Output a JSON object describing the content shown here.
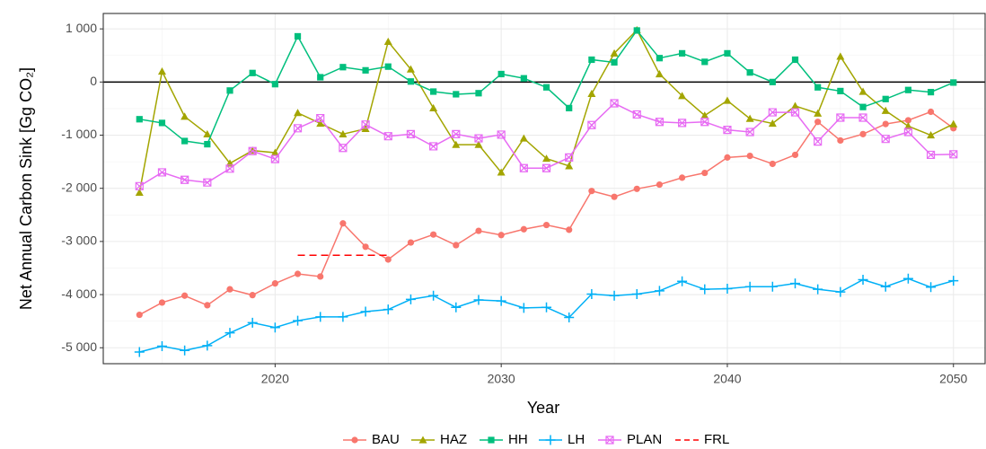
{
  "chart_data": {
    "type": "line",
    "x_label": "Year",
    "y_label": "Net Annual Carbon Sink [Gg CO₂]",
    "x": [
      2014,
      2015,
      2016,
      2017,
      2018,
      2019,
      2020,
      2021,
      2022,
      2023,
      2024,
      2025,
      2026,
      2027,
      2028,
      2029,
      2030,
      2031,
      2032,
      2033,
      2034,
      2035,
      2036,
      2037,
      2038,
      2039,
      2040,
      2041,
      2042,
      2043,
      2044,
      2045,
      2046,
      2047,
      2048,
      2049,
      2050
    ],
    "series": [
      {
        "name": "BAU",
        "color": "#F8766D",
        "marker": "circle",
        "values": [
          -4380,
          -4150,
          -4020,
          -4200,
          -3900,
          -4010,
          -3790,
          -3610,
          -3660,
          -2660,
          -3100,
          -3340,
          -3020,
          -2870,
          -3070,
          -2800,
          -2880,
          -2770,
          -2690,
          -2780,
          -2050,
          -2160,
          -2010,
          -1930,
          -1800,
          -1710,
          -1420,
          -1390,
          -1540,
          -1370,
          -750,
          -1100,
          -980,
          -790,
          -720,
          -560,
          -870
        ]
      },
      {
        "name": "HAZ",
        "color": "#A3A500",
        "marker": "triangle",
        "values": [
          -2080,
          200,
          -650,
          -980,
          -1530,
          -1290,
          -1330,
          -580,
          -780,
          -980,
          -880,
          760,
          240,
          -490,
          -1180,
          -1180,
          -1700,
          -1060,
          -1440,
          -1580,
          -220,
          540,
          980,
          150,
          -260,
          -630,
          -350,
          -690,
          -780,
          -450,
          -590,
          480,
          -180,
          -540,
          -830,
          -1000,
          -790
        ]
      },
      {
        "name": "HH",
        "color": "#00BF7D",
        "marker": "square",
        "values": [
          -700,
          -770,
          -1110,
          -1170,
          -160,
          170,
          -40,
          860,
          90,
          280,
          220,
          290,
          10,
          -180,
          -230,
          -210,
          150,
          70,
          -100,
          -490,
          420,
          370,
          970,
          450,
          540,
          380,
          540,
          180,
          0,
          420,
          -100,
          -170,
          -470,
          -320,
          -150,
          -190,
          -10
        ]
      },
      {
        "name": "LH",
        "color": "#00B0F6",
        "marker": "plus",
        "values": [
          -5080,
          -4970,
          -5050,
          -4960,
          -4720,
          -4530,
          -4620,
          -4490,
          -4420,
          -4420,
          -4320,
          -4280,
          -4090,
          -4020,
          -4240,
          -4100,
          -4120,
          -4250,
          -4240,
          -4430,
          -3990,
          -4020,
          -3990,
          -3930,
          -3750,
          -3900,
          -3890,
          -3850,
          -3850,
          -3790,
          -3900,
          -3950,
          -3720,
          -3850,
          -3700,
          -3860,
          -3740
        ]
      },
      {
        "name": "PLAN",
        "color": "#E76BF3",
        "marker": "square-cross",
        "values": [
          -1960,
          -1700,
          -1840,
          -1890,
          -1630,
          -1300,
          -1450,
          -870,
          -680,
          -1240,
          -800,
          -1020,
          -980,
          -1210,
          -980,
          -1060,
          -990,
          -1620,
          -1620,
          -1420,
          -810,
          -400,
          -610,
          -750,
          -770,
          -750,
          -900,
          -940,
          -570,
          -570,
          -1120,
          -670,
          -670,
          -1070,
          -940,
          -1370,
          -1360
        ]
      },
      {
        "name": "FRL",
        "color": "#FF0000",
        "dashed": true,
        "x": [
          2021,
          2025
        ],
        "values": [
          -3260,
          -3260
        ]
      }
    ],
    "xlim": [
      2012.4,
      2051.4
    ],
    "xticks": [
      2020,
      2030,
      2040,
      2050
    ],
    "ylim": [
      -5300,
      1290
    ],
    "yticks": [
      {
        "value": -5000,
        "label": "-5 000"
      },
      {
        "value": -4000,
        "label": "-4 000"
      },
      {
        "value": -3000,
        "label": "-3 000"
      },
      {
        "value": -2000,
        "label": "-2 000"
      },
      {
        "value": -1000,
        "label": "-1 000"
      },
      0,
      {
        "value": 1000,
        "label": "1 000"
      }
    ],
    "hline": 0,
    "grid": true,
    "legend": "bottom"
  }
}
